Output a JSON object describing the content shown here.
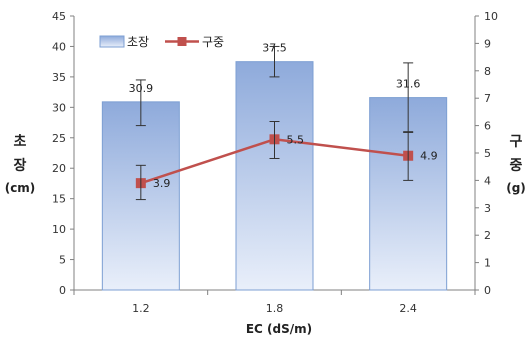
{
  "chart_data": {
    "type": "bar",
    "categories": [
      "1.2",
      "1.8",
      "2.4"
    ],
    "xlabel": "EC (dS/m)",
    "ylabel_left_lines": [
      "초",
      "장",
      "(cm)"
    ],
    "ylabel_right_lines": [
      "구",
      "중",
      "(g)"
    ],
    "ylim_left": [
      0,
      45
    ],
    "yticks_left": [
      0,
      5,
      10,
      15,
      20,
      25,
      30,
      35,
      40,
      45
    ],
    "ylim_right": [
      0,
      10
    ],
    "yticks_right": [
      0,
      1,
      2,
      3,
      4,
      5,
      6,
      7,
      8,
      9,
      10
    ],
    "legend_position": "top-left",
    "series": [
      {
        "name": "초장",
        "kind": "bar",
        "axis": "left",
        "values": [
          30.9,
          37.5,
          31.6
        ],
        "labels": [
          "30.9",
          "37.5",
          "31.6"
        ],
        "error_low": [
          27.0,
          35.0,
          26.0
        ],
        "error_high": [
          34.5,
          40.0,
          37.3
        ],
        "color": "#8eaadb"
      },
      {
        "name": "구중",
        "kind": "line",
        "axis": "right",
        "values": [
          3.9,
          5.5,
          4.9
        ],
        "labels": [
          "3.9",
          "5.5",
          "4.9"
        ],
        "error_low": [
          3.3,
          4.8,
          4.0
        ],
        "error_high": [
          4.55,
          6.15,
          5.75
        ],
        "color": "#c0504d"
      }
    ]
  }
}
